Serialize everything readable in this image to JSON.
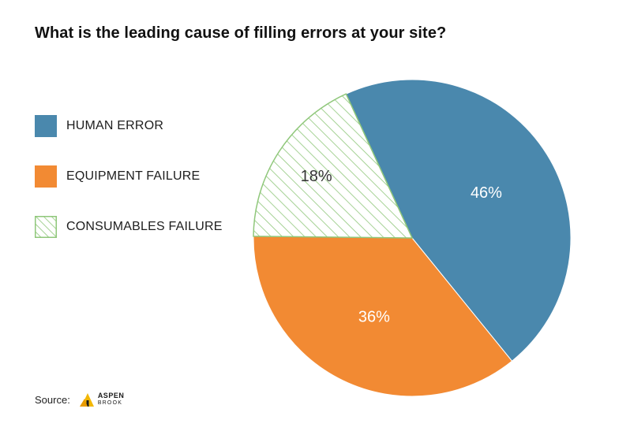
{
  "chart_data": {
    "type": "pie",
    "title": "What is the leading cause of filling errors at your site?",
    "slices": [
      {
        "name": "HUMAN ERROR",
        "value": 46,
        "label": "46%",
        "color": "#4a88ad",
        "pattern": "solid"
      },
      {
        "name": "EQUIPMENT FAILURE",
        "value": 36,
        "label": "36%",
        "color": "#f28a33",
        "pattern": "solid"
      },
      {
        "name": "CONSUMABLES FAILURE",
        "value": 18,
        "label": "18%",
        "color": "#8fc77a",
        "pattern": "diagonal-hatch"
      }
    ],
    "legend_placement": "left"
  },
  "source": {
    "label": "Source:",
    "logo_icon": "aspen-brook-logo-icon",
    "logo_line1": "ASPEN",
    "logo_line2": "BROOK"
  }
}
